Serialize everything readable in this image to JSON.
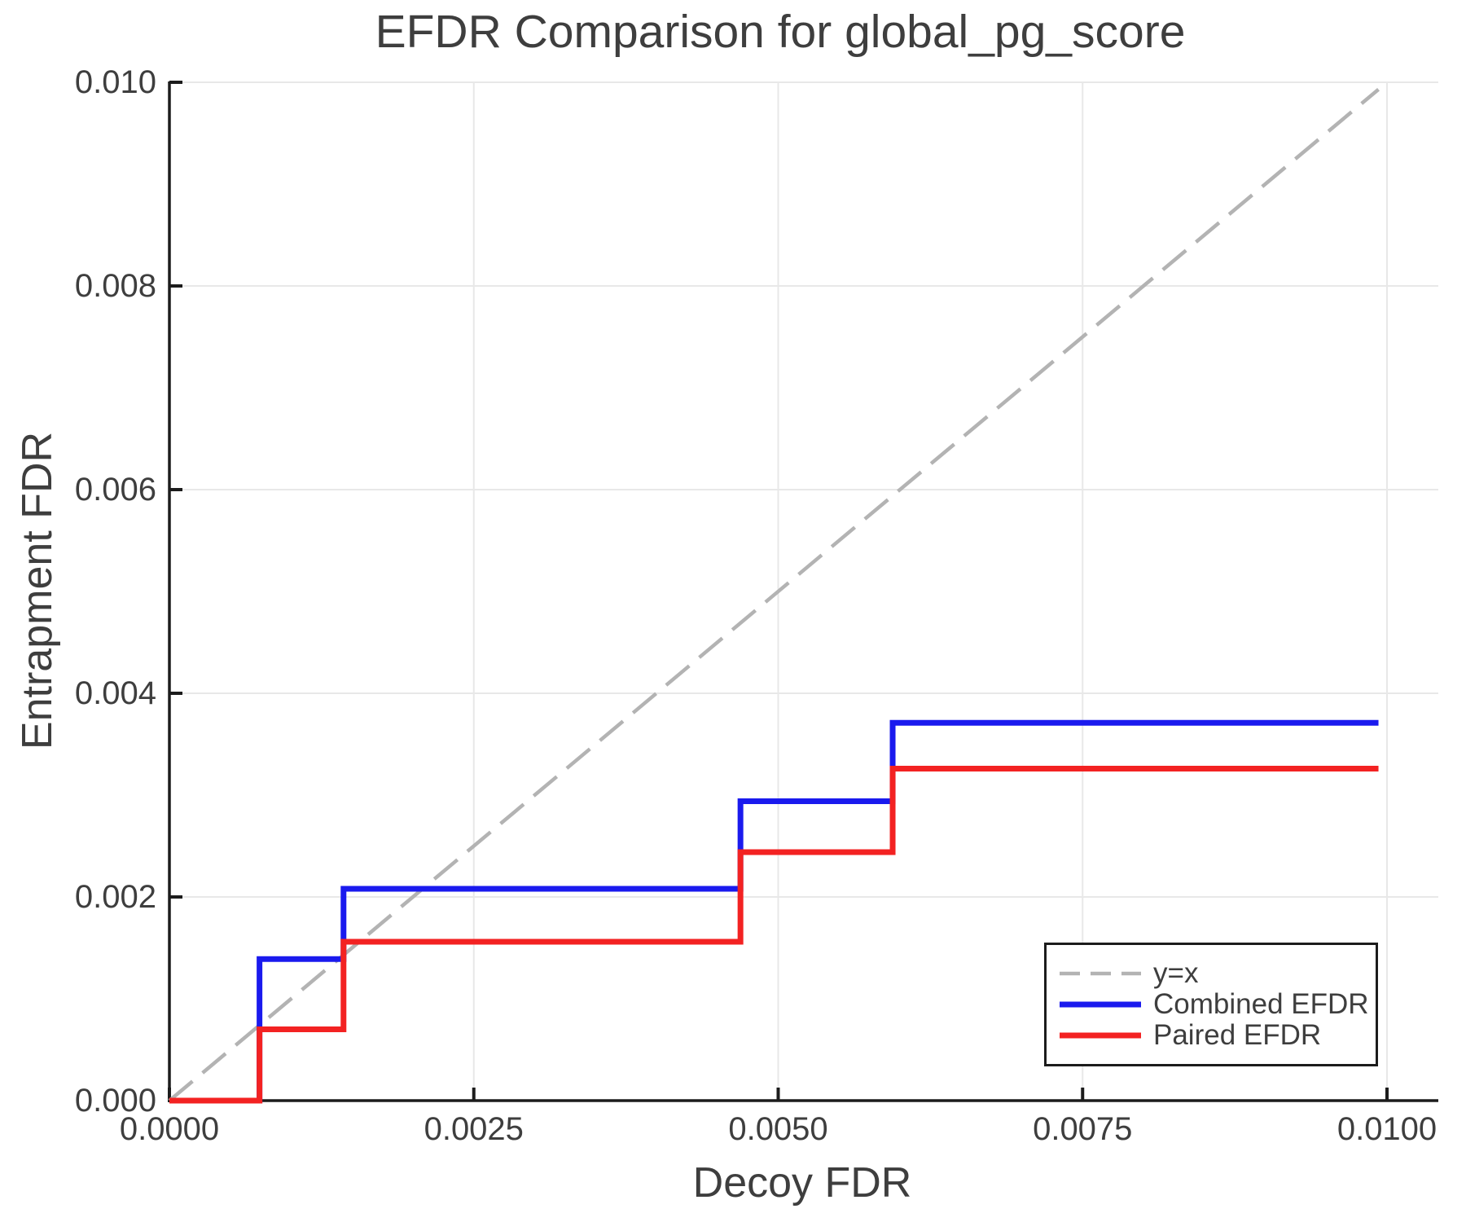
{
  "chart_data": {
    "type": "line",
    "title": "EFDR Comparison for global_pg_score",
    "xlabel": "Decoy FDR",
    "ylabel": "Entrapment FDR",
    "xlim": [
      0,
      0.01042
    ],
    "ylim": [
      0,
      0.01
    ],
    "grid": true,
    "grid_color": "#e8e8e8",
    "axis_color": "#1c1c1c",
    "text_color": "#3e3e3e",
    "legend_position": "lower right",
    "x_ticks": {
      "values": [
        0.0,
        0.0025,
        0.005,
        0.0075,
        0.01
      ],
      "labels": [
        "0.0000",
        "0.0025",
        "0.0050",
        "0.0075",
        "0.0100"
      ]
    },
    "y_ticks": {
      "values": [
        0.0,
        0.002,
        0.004,
        0.006,
        0.008,
        0.01
      ],
      "labels": [
        "0.000",
        "0.002",
        "0.004",
        "0.006",
        "0.008",
        "0.010"
      ]
    },
    "series": [
      {
        "key": "identity",
        "name": "y=x",
        "style": "dashed",
        "color": "#b3b3b3",
        "points": [
          [
            0,
            0
          ],
          [
            0.00993,
            0.00993
          ]
        ]
      },
      {
        "key": "combined_efdr",
        "name": "Combined EFDR",
        "style": "solid",
        "color": "#1a1aee",
        "points": [
          [
            0,
            0
          ],
          [
            0.00074,
            0
          ],
          [
            0.00074,
            0.00139
          ],
          [
            0.00143,
            0.00139
          ],
          [
            0.00143,
            0.00208
          ],
          [
            0.00469,
            0.00208
          ],
          [
            0.00469,
            0.00294
          ],
          [
            0.00594,
            0.00294
          ],
          [
            0.00594,
            0.00371
          ],
          [
            0.00993,
            0.00371
          ]
        ]
      },
      {
        "key": "paired_efdr",
        "name": "Paired EFDR",
        "style": "solid",
        "color": "#f32222",
        "points": [
          [
            0,
            0
          ],
          [
            0.00074,
            0
          ],
          [
            0.00074,
            0.0007
          ],
          [
            0.00143,
            0.0007
          ],
          [
            0.00143,
            0.00156
          ],
          [
            0.00469,
            0.00156
          ],
          [
            0.00469,
            0.00244
          ],
          [
            0.00594,
            0.00244
          ],
          [
            0.00594,
            0.00326
          ],
          [
            0.00993,
            0.00326
          ]
        ]
      }
    ]
  }
}
